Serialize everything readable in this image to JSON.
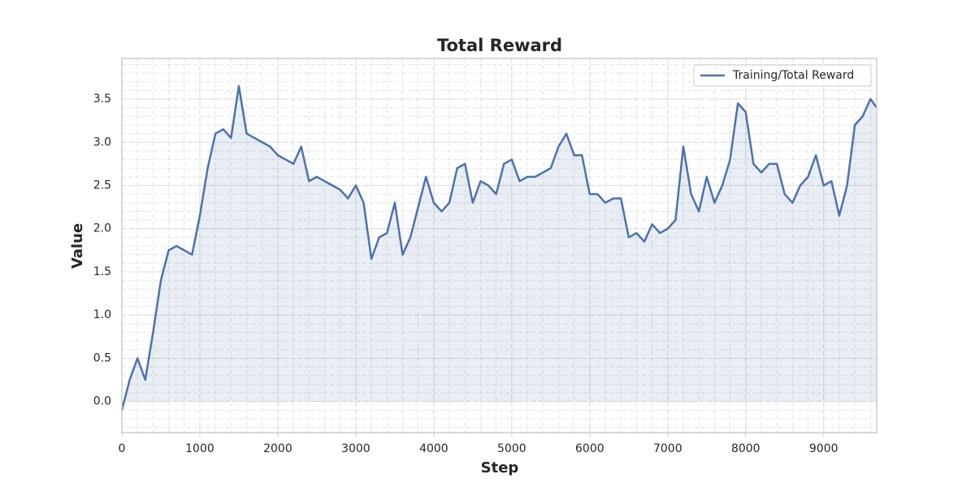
{
  "chart_data": {
    "type": "line",
    "title": "Total Reward",
    "x_label": "Step",
    "y_label": "Value",
    "x": [
      0,
      100,
      200,
      300,
      400,
      500,
      600,
      700,
      800,
      900,
      1000,
      1100,
      1200,
      1300,
      1400,
      1500,
      1600,
      1700,
      1800,
      1900,
      2000,
      2100,
      2200,
      2300,
      2400,
      2500,
      2600,
      2700,
      2800,
      2900,
      3000,
      3100,
      3200,
      3300,
      3400,
      3500,
      3600,
      3700,
      3800,
      3900,
      4000,
      4100,
      4200,
      4300,
      4400,
      4500,
      4600,
      4700,
      4800,
      4900,
      5000,
      5100,
      5200,
      5300,
      5400,
      5500,
      5600,
      5700,
      5800,
      5900,
      6000,
      6100,
      6200,
      6300,
      6400,
      6500,
      6600,
      6700,
      6800,
      6900,
      7000,
      7100,
      7200,
      7300,
      7400,
      7500,
      7600,
      7700,
      7800,
      7900,
      8000,
      8100,
      8200,
      8300,
      8400,
      8500,
      8600,
      8700,
      8800,
      8900,
      9000,
      9100,
      9200,
      9300,
      9400,
      9500,
      9600,
      9680
    ],
    "series": [
      {
        "name": "Training/Total Reward",
        "color": "#4c72b0",
        "values": [
          -0.1,
          0.25,
          0.5,
          0.25,
          0.8,
          1.4,
          1.75,
          1.8,
          1.75,
          1.7,
          2.15,
          2.7,
          3.1,
          3.15,
          3.05,
          3.65,
          3.1,
          3.05,
          3.0,
          2.95,
          2.85,
          2.8,
          2.75,
          2.95,
          2.55,
          2.6,
          2.55,
          2.5,
          2.45,
          2.35,
          2.5,
          2.3,
          1.65,
          1.9,
          1.95,
          2.3,
          1.7,
          1.9,
          2.25,
          2.6,
          2.3,
          2.2,
          2.3,
          2.7,
          2.75,
          2.3,
          2.55,
          2.5,
          2.4,
          2.75,
          2.8,
          2.55,
          2.6,
          2.6,
          2.65,
          2.7,
          2.95,
          3.1,
          2.85,
          2.85,
          2.4,
          2.4,
          2.3,
          2.35,
          2.35,
          1.9,
          1.95,
          1.85,
          2.05,
          1.95,
          2.0,
          2.1,
          2.95,
          2.4,
          2.2,
          2.6,
          2.3,
          2.5,
          2.8,
          3.45,
          3.35,
          2.75,
          2.65,
          2.75,
          2.75,
          2.4,
          2.3,
          2.5,
          2.6,
          2.85,
          2.5,
          2.55,
          2.15,
          2.5,
          3.2,
          3.3,
          3.5,
          3.4
        ]
      }
    ],
    "xlim": [
      0,
      9680
    ],
    "ylim": [
      -0.36,
      3.97
    ],
    "xticks": [
      0,
      1000,
      2000,
      3000,
      4000,
      5000,
      6000,
      7000,
      8000,
      9000
    ],
    "yticks": [
      {
        "value": 0,
        "label": "0.0"
      },
      0.5,
      {
        "value": 1,
        "label": "1.0"
      },
      1.5,
      {
        "value": 2,
        "label": "2.0"
      },
      2.5,
      {
        "value": 3,
        "label": "3.0"
      },
      3.5
    ],
    "grid": true,
    "minor_grid": true,
    "fill_area": true,
    "legend": "upper right"
  }
}
